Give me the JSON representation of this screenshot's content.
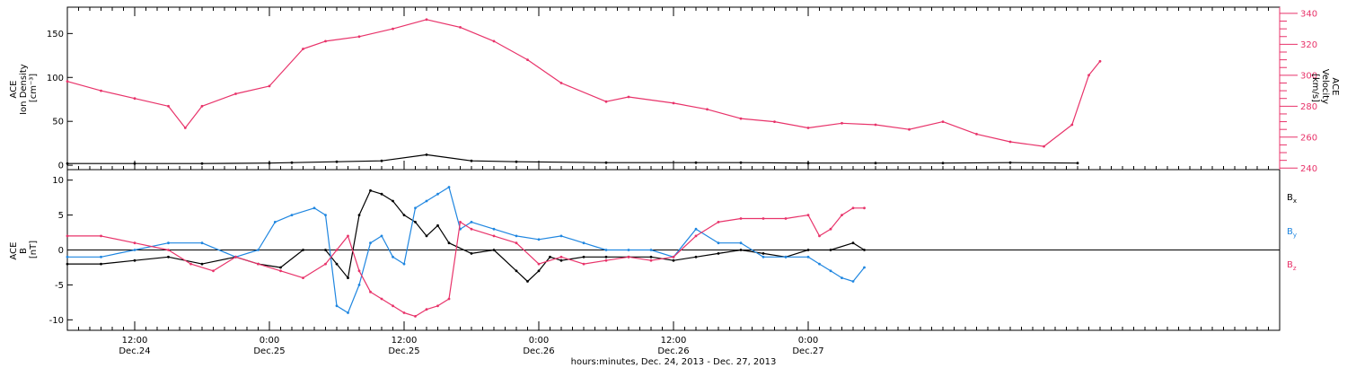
{
  "chart_data": [
    {
      "type": "scatter",
      "panel": "top",
      "title": "",
      "left_axis": {
        "label_lines": [
          "ACE",
          "Ion Density",
          "[cm⁻³]"
        ],
        "ylim": [
          -5,
          180
        ],
        "ticks": [
          0,
          50,
          100,
          150
        ],
        "tick_labels": [
          "0",
          "50",
          "100",
          "150"
        ]
      },
      "right_axis": {
        "label_lines": [
          "ACE",
          "Velocity",
          "[km/s]"
        ],
        "ylim": [
          239,
          344
        ],
        "ticks": [
          240,
          260,
          280,
          300,
          320,
          340
        ],
        "tick_labels": [
          "240",
          "260",
          "280",
          "300",
          "320",
          "340"
        ],
        "color": "#e8336a"
      },
      "series": [
        {
          "color": "#000000",
          "axis": "left",
          "x": [
            0,
            6,
            12,
            18,
            20,
            24,
            28,
            32,
            36,
            40,
            48,
            56,
            60,
            66,
            72,
            78,
            84,
            90
          ],
          "values": [
            2,
            2,
            2,
            2.5,
            3,
            4,
            5,
            12,
            5,
            4,
            3,
            3,
            3,
            2.5,
            2.5,
            2.5,
            3,
            2.5
          ]
        },
        {
          "color": "#e8336a",
          "axis": "right",
          "x": [
            0,
            3,
            6,
            9,
            10.5,
            12,
            15,
            18,
            21,
            23,
            26,
            29,
            32,
            35,
            38,
            41,
            44,
            48,
            50,
            54,
            57,
            60,
            63,
            66,
            69,
            72,
            75,
            78,
            81,
            84,
            87,
            89.5,
            91,
            92
          ],
          "values": [
            296,
            290,
            285,
            280,
            266,
            280,
            288,
            293,
            317,
            322,
            325,
            330,
            336,
            331,
            322,
            310,
            295,
            283,
            286,
            282,
            278,
            272,
            270,
            266,
            269,
            268,
            265,
            270,
            262,
            257,
            254,
            268,
            300,
            309
          ]
        }
      ]
    },
    {
      "type": "scatter",
      "panel": "bottom",
      "title": "",
      "xlabel": "hours:minutes, Dec. 24, 2013 - Dec. 27, 2013",
      "left_axis": {
        "label_lines": [
          "ACE",
          "B",
          "[nT]"
        ],
        "ylim": [
          -11.5,
          11.5
        ],
        "ticks": [
          -10,
          -5,
          0,
          5,
          10
        ],
        "tick_labels": [
          "-10",
          "-5",
          "0",
          "5",
          "10"
        ]
      },
      "zero_line": true,
      "xlim": [
        0,
        108
      ],
      "x_ticks": [
        {
          "x": 6,
          "time": "12:00",
          "date": "Dec.24"
        },
        {
          "x": 18,
          "time": "0:00",
          "date": "Dec.25"
        },
        {
          "x": 30,
          "time": "12:00",
          "date": "Dec.25"
        },
        {
          "x": 42,
          "time": "0:00",
          "date": "Dec.26"
        },
        {
          "x": 54,
          "time": "12:00",
          "date": "Dec.26"
        },
        {
          "x": 66,
          "time": "0:00",
          "date": "Dec.27"
        }
      ],
      "legend": [
        {
          "name": "B",
          "sub": "x",
          "color": "#000000"
        },
        {
          "name": "B",
          "sub": "y",
          "color": "#1f86e0"
        },
        {
          "name": "B",
          "sub": "z",
          "color": "#e8336a"
        }
      ],
      "series": [
        {
          "name": "Bx",
          "color": "#000000",
          "x": [
            0,
            3,
            6,
            9,
            12,
            15,
            17,
            19,
            21,
            23,
            24,
            25,
            26,
            27,
            28,
            29,
            30,
            31,
            32,
            33,
            34,
            36,
            38,
            40,
            41,
            42,
            43,
            44,
            46,
            48,
            50,
            52,
            54,
            56,
            58,
            60,
            62,
            64,
            66,
            68,
            70,
            71
          ],
          "values": [
            -2,
            -2,
            -1.5,
            -1,
            -2,
            -1,
            -2,
            -2.5,
            0,
            0,
            -2,
            -4,
            5,
            8.5,
            8,
            7,
            5,
            4,
            2,
            3.5,
            1,
            -0.5,
            0,
            -3,
            -4.5,
            -3,
            -1,
            -1.5,
            -1,
            -1,
            -1,
            -1,
            -1.5,
            -1,
            -0.5,
            0,
            -0.5,
            -1,
            0,
            0,
            1,
            0
          ]
        },
        {
          "name": "By",
          "color": "#1f86e0",
          "x": [
            0,
            3,
            6,
            9,
            12,
            15,
            17,
            18.5,
            20,
            22,
            23,
            24,
            25,
            26,
            27,
            28,
            29,
            30,
            31,
            32,
            33,
            34,
            35,
            36,
            38,
            40,
            42,
            44,
            46,
            48,
            50,
            52,
            54,
            56,
            58,
            60,
            62,
            64,
            66,
            67,
            68,
            69,
            70,
            71
          ],
          "values": [
            -1,
            -1,
            0,
            1,
            1,
            -1,
            0,
            4,
            5,
            6,
            5,
            -8,
            -9,
            -5,
            1,
            2,
            -1,
            -2,
            6,
            7,
            8,
            9,
            3,
            4,
            3,
            2,
            1.5,
            2,
            1,
            0,
            0,
            0,
            -1,
            3,
            1,
            1,
            -1,
            -1,
            -1,
            -2,
            -3,
            -4,
            -4.5,
            -2.5
          ]
        },
        {
          "name": "Bz",
          "color": "#e8336a",
          "x": [
            0,
            3,
            6,
            9,
            11,
            13,
            15,
            17,
            19,
            21,
            23,
            24,
            25,
            26,
            27,
            28,
            29,
            30,
            31,
            32,
            33,
            34,
            35,
            36,
            38,
            40,
            42,
            44,
            46,
            48,
            50,
            52,
            54,
            56,
            58,
            60,
            62,
            64,
            66,
            67,
            68,
            69,
            70,
            71
          ],
          "values": [
            2,
            2,
            1,
            0,
            -2,
            -3,
            -1,
            -2,
            -3,
            -4,
            -2,
            0,
            2,
            -3,
            -6,
            -7,
            -8,
            -9,
            -9.5,
            -8.5,
            -8,
            -7,
            4,
            3,
            2,
            1,
            -2,
            -1,
            -2,
            -1.5,
            -1,
            -1.5,
            -1,
            2,
            4,
            4.5,
            4.5,
            4.5,
            5,
            2,
            3,
            5,
            6,
            6
          ]
        }
      ]
    }
  ],
  "palette": {
    "black": "#000000",
    "blue": "#1f86e0",
    "pink": "#e8336a"
  }
}
